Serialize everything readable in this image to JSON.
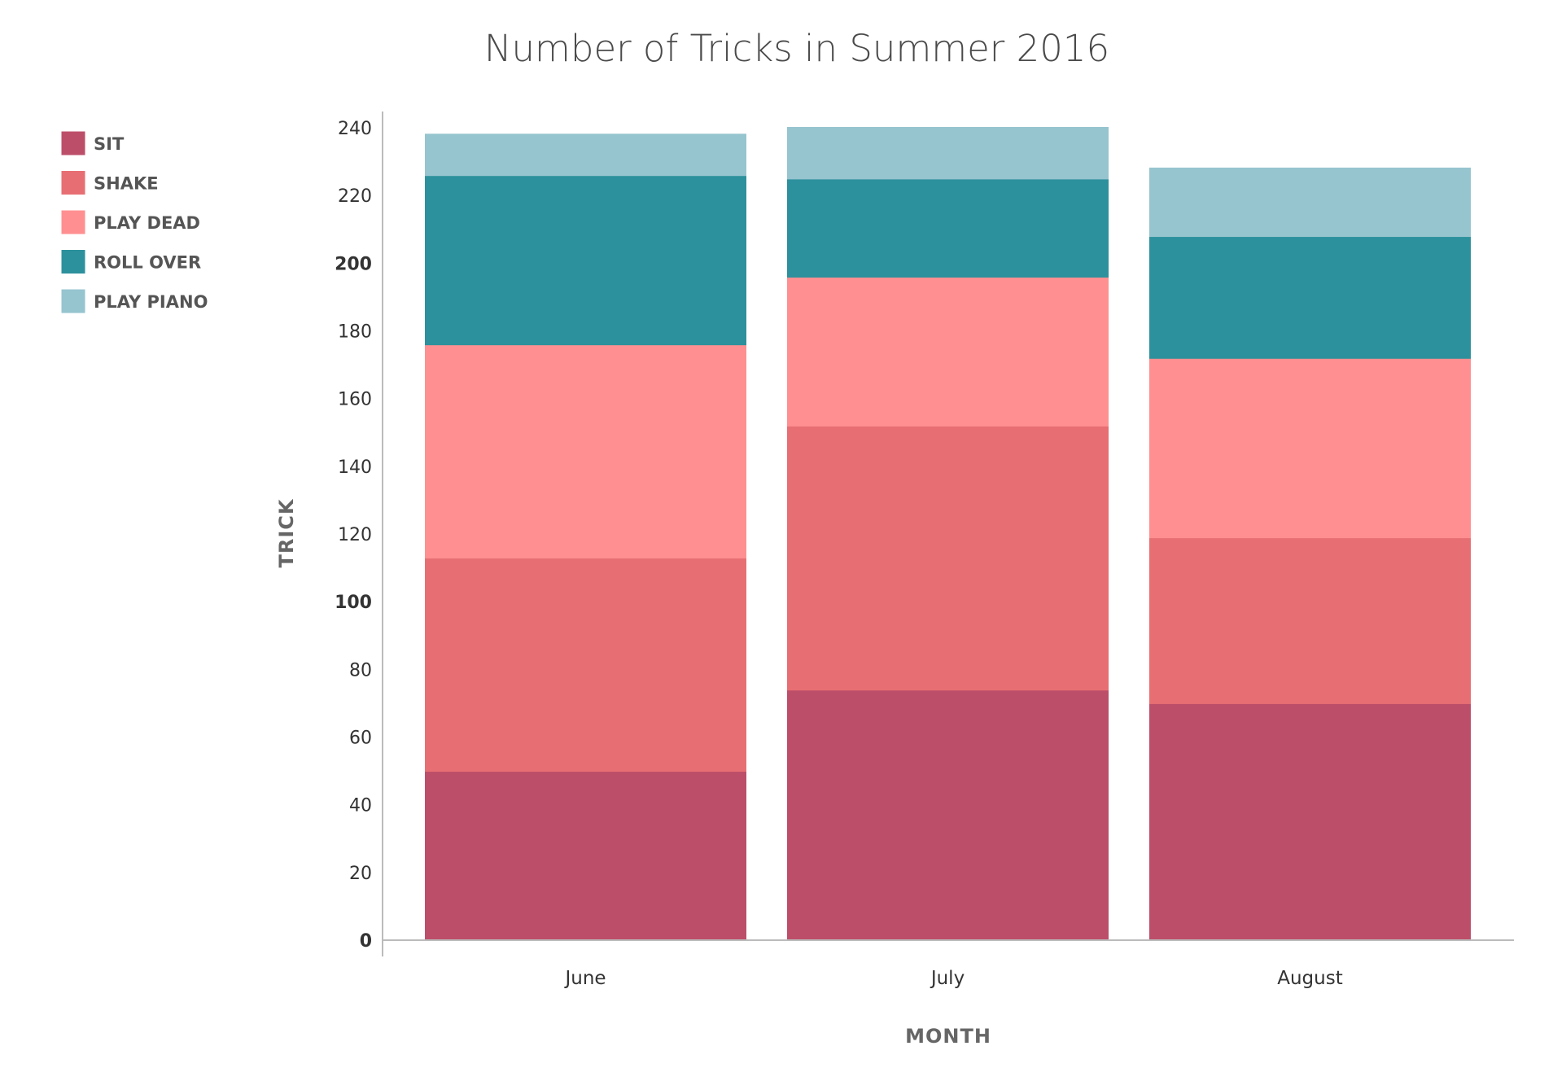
{
  "chart_data": {
    "type": "bar",
    "stacked": true,
    "title": "Number of Tricks in Summer 2016",
    "xlabel": "MONTH",
    "ylabel": "TRICK",
    "categories": [
      "June",
      "July",
      "August"
    ],
    "ylim": [
      0,
      240
    ],
    "yticks": [
      "0",
      "20",
      "40",
      "60",
      "80",
      "100",
      "120",
      "140",
      "160",
      "180",
      "200",
      "220",
      "240"
    ],
    "bold_yticks": [
      "0",
      "100",
      "200"
    ],
    "legend_position": "top-left",
    "grid": false,
    "series": [
      {
        "name": "SIT",
        "values": [
          50,
          74,
          70
        ],
        "color": "#bc4e6a"
      },
      {
        "name": "SHAKE",
        "values": [
          63,
          78,
          49
        ],
        "color": "#e76e73"
      },
      {
        "name": "PLAY DEAD",
        "values": [
          63,
          44,
          53
        ],
        "color": "#ff8f91"
      },
      {
        "name": "ROLL OVER",
        "values": [
          50,
          29,
          36
        ],
        "color": "#2c919c"
      },
      {
        "name": "PLAY PIANO",
        "values": [
          12,
          15,
          20
        ],
        "color": "#96c4cf"
      }
    ]
  }
}
